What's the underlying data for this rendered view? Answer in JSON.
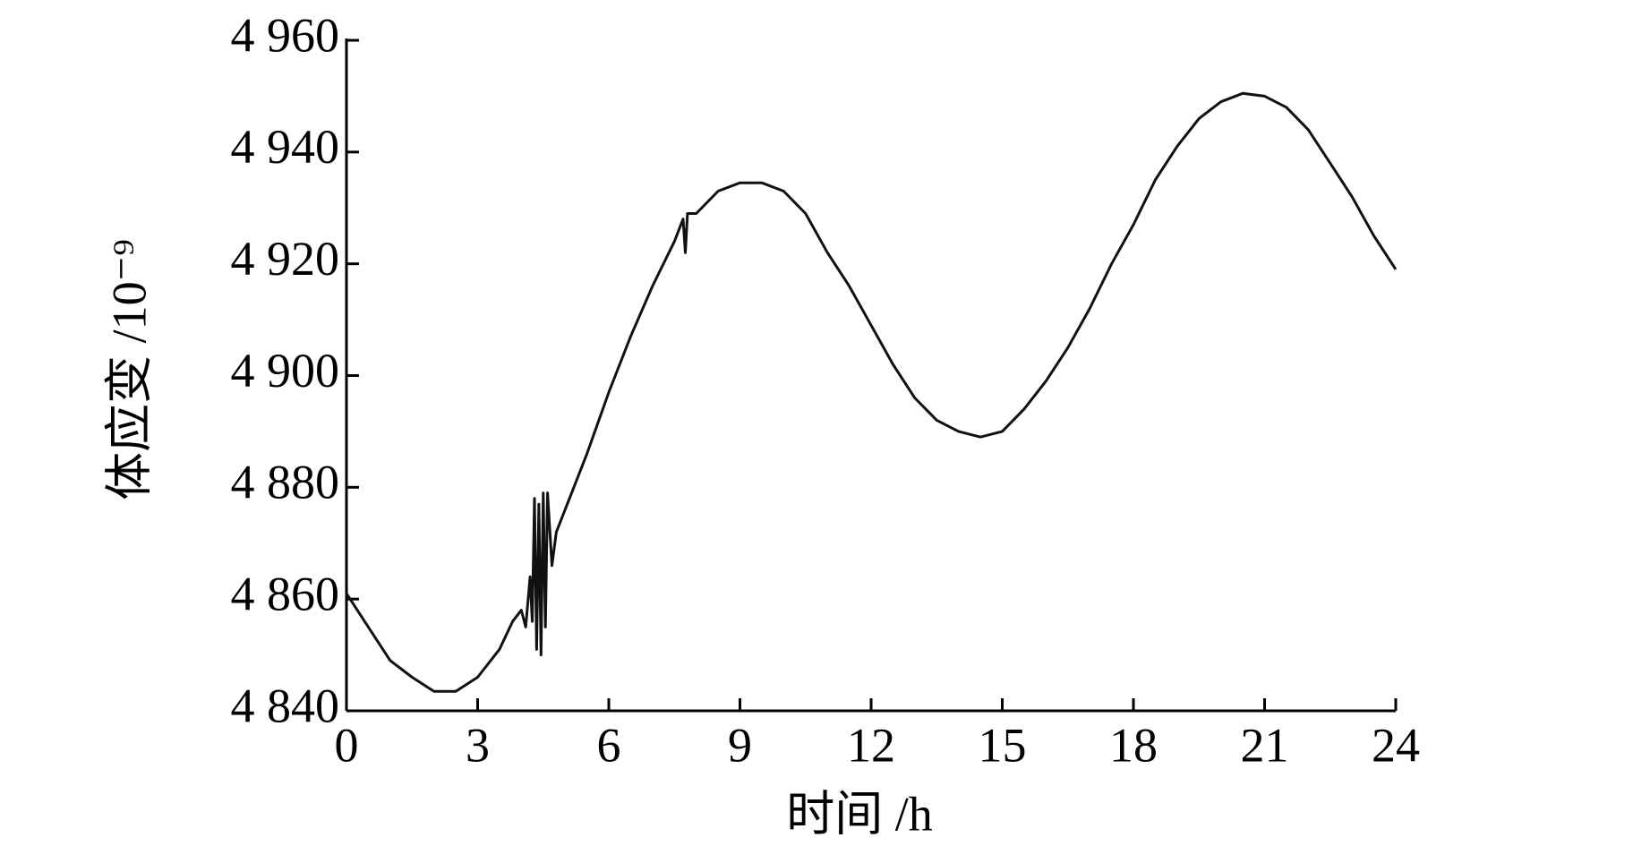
{
  "chart_data": {
    "type": "line",
    "xlabel": "时间 /h",
    "ylabel": "体应变 /10⁻⁹",
    "xlim": [
      0,
      24
    ],
    "xticks": [
      0,
      3,
      6,
      9,
      12,
      15,
      18,
      21,
      24
    ],
    "ylim": [
      4840,
      4960
    ],
    "yticks": [
      {
        "value": 4840,
        "label": "4 840"
      },
      {
        "value": 4860,
        "label": "4 860"
      },
      {
        "value": 4880,
        "label": "4 880"
      },
      {
        "value": 4900,
        "label": "4 900"
      },
      {
        "value": 4920,
        "label": "4 920"
      },
      {
        "value": 4940,
        "label": "4 940"
      },
      {
        "value": 4960,
        "label": "4 960"
      }
    ],
    "color": "#111111",
    "x": [
      0,
      0.5,
      1,
      1.5,
      2,
      2.5,
      3,
      3.5,
      3.8,
      4.0,
      4.1,
      4.2,
      4.25,
      4.3,
      4.35,
      4.4,
      4.45,
      4.5,
      4.55,
      4.6,
      4.7,
      4.8,
      5,
      5.5,
      6,
      6.5,
      7,
      7.5,
      7.7,
      7.75,
      7.8,
      8,
      8.5,
      9,
      9.5,
      10,
      10.5,
      11,
      11.5,
      12,
      12.5,
      13,
      13.5,
      14,
      14.5,
      15,
      15.5,
      16,
      16.5,
      17,
      17.5,
      18,
      18.5,
      19,
      19.5,
      20,
      20.5,
      21,
      21.5,
      22,
      22.5,
      23,
      23.5,
      24
    ],
    "values": [
      4861,
      4855,
      4849,
      4846,
      4843.5,
      4843.5,
      4846,
      4851,
      4856,
      4858,
      4855,
      4864,
      4856,
      4878,
      4851,
      4877,
      4850,
      4879,
      4855,
      4879,
      4866,
      4872,
      4876,
      4886,
      4897,
      4907,
      4916,
      4924,
      4928,
      4922,
      4929,
      4929,
      4933,
      4934.5,
      4934.5,
      4933,
      4929,
      4922,
      4916,
      4909,
      4902,
      4896,
      4892,
      4890,
      4889,
      4890,
      4894,
      4899,
      4905,
      4912,
      4920,
      4927,
      4935,
      4941,
      4946,
      4949,
      4950.5,
      4950,
      4948,
      4944,
      4938,
      4932,
      4925,
      4919
    ]
  }
}
